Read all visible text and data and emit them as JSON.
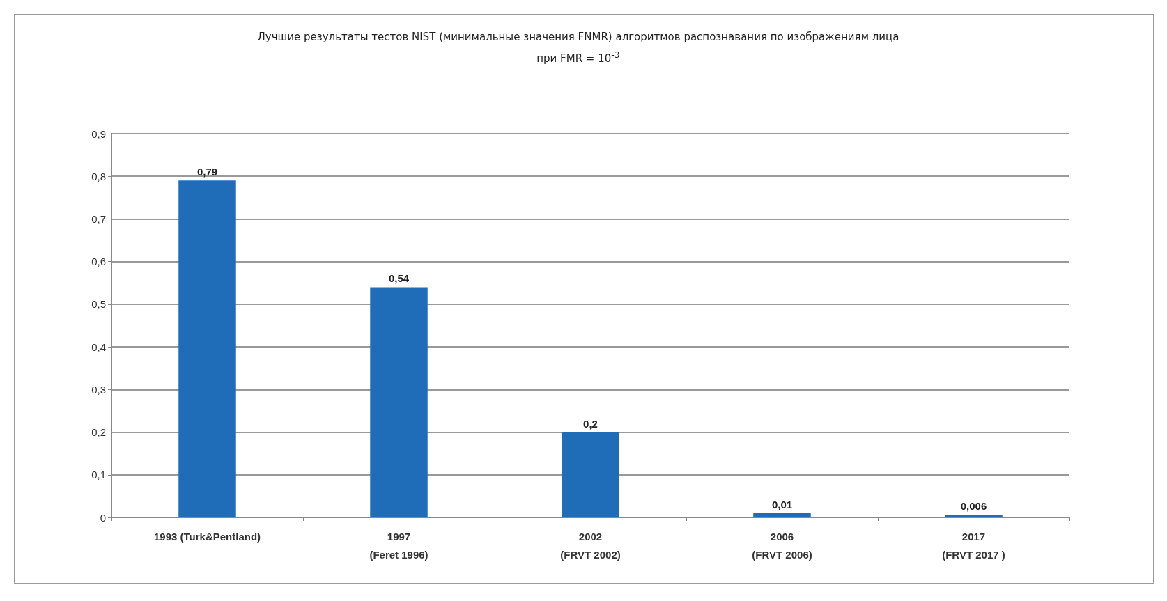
{
  "chart_data": {
    "type": "bar",
    "title": "Лучшие результаты тестов NIST  (минимальные значения FNMR) алгоритмов  распознавания по изображениям лица при FMR = 10$^{-3}$",
    "categories": [
      "1993 (Turk&Pentland)",
      "1997\n(Feret 1996)",
      "2002\n(FRVT 2002)",
      "2006\n(FRVT 2006)",
      "2017\n(FRVT 2017 )"
    ],
    "values": [
      0.79,
      0.54,
      0.2,
      0.01,
      0.006
    ],
    "value_labels": [
      "0,79",
      "0,54",
      "0,2",
      "0,01",
      "0,006"
    ],
    "color": "#1f6cb8",
    "ylim": [
      0,
      0.9
    ],
    "yticks": [
      0,
      {
        "value": 0.1,
        "label": "0,1"
      },
      {
        "value": 0.2,
        "label": "0,2"
      },
      {
        "value": 0.3,
        "label": "0,3"
      },
      {
        "value": 0.4,
        "label": "0,4"
      },
      {
        "value": 0.5,
        "label": "0,5"
      },
      {
        "value": 0.6,
        "label": "0,6"
      },
      {
        "value": 0.7,
        "label": "0,7"
      },
      {
        "value": 0.8,
        "label": "0,8"
      },
      {
        "value": 0.9,
        "label": "0,9"
      }
    ],
    "grid": "y"
  }
}
